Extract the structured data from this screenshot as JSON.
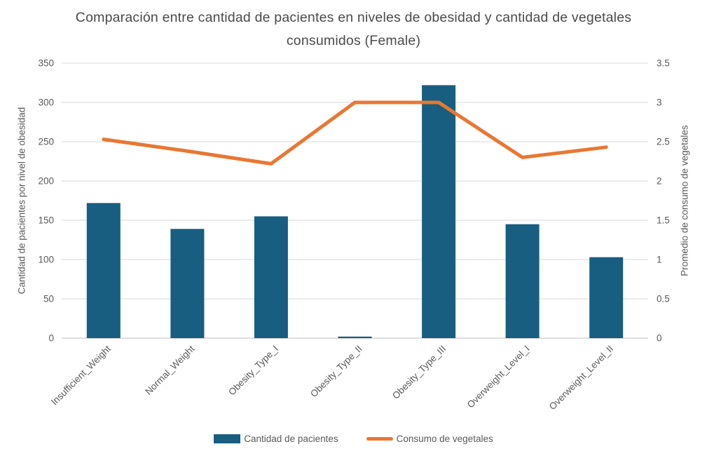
{
  "title": "Comparación entre cantidad de pacientes en niveles de obesidad y cantidad de vegetales consumidos (Female)",
  "colors": {
    "bar": "#175E80",
    "line": "#E97732",
    "grid": "#D9D9D9",
    "axis_line": "#BFBFBF",
    "text": "#595959"
  },
  "legend": [
    {
      "label": "Cantidad de pacientes",
      "swatch": "bar"
    },
    {
      "label": "Consumo de vegetales",
      "swatch": "line"
    }
  ],
  "chart_data": {
    "type": "bar",
    "subtype": "bar+line dual axis",
    "title": "Comparación entre cantidad de pacientes en niveles de obesidad y cantidad de vegetales consumidos (Female)",
    "categories": [
      "Insufficient_Weight",
      "Normal_Weight",
      "Obesity_Type_I",
      "Obesity_Type_II",
      "Obesity_Type_III",
      "Overweight_Level_I",
      "Overweight_Level_II"
    ],
    "series": [
      {
        "name": "Cantidad de pacientes",
        "type": "bar",
        "axis": "left",
        "color": "#175E80",
        "values": [
          172,
          139,
          155,
          2,
          322,
          145,
          103
        ]
      },
      {
        "name": "Consumo de vegetales",
        "type": "line",
        "axis": "right",
        "color": "#E97732",
        "values": [
          2.53,
          2.38,
          2.22,
          3.0,
          3.0,
          2.3,
          2.43
        ]
      }
    ],
    "left_axis": {
      "label": "Cantidad de pacientes por nivel de obesidad",
      "min": 0,
      "max": 350,
      "step": 50,
      "ticks": [
        "0",
        "50",
        "100",
        "150",
        "200",
        "250",
        "300",
        "350"
      ]
    },
    "right_axis": {
      "label": "Promedio de consumo de vegetales",
      "min": 0,
      "max": 3.5,
      "step": 0.5,
      "ticks": [
        "0",
        "0.5",
        "1",
        "1.5",
        "2",
        "2.5",
        "3",
        "3.5"
      ]
    },
    "grid": true,
    "legend_position": "bottom",
    "x_tick_rotation": -45
  }
}
